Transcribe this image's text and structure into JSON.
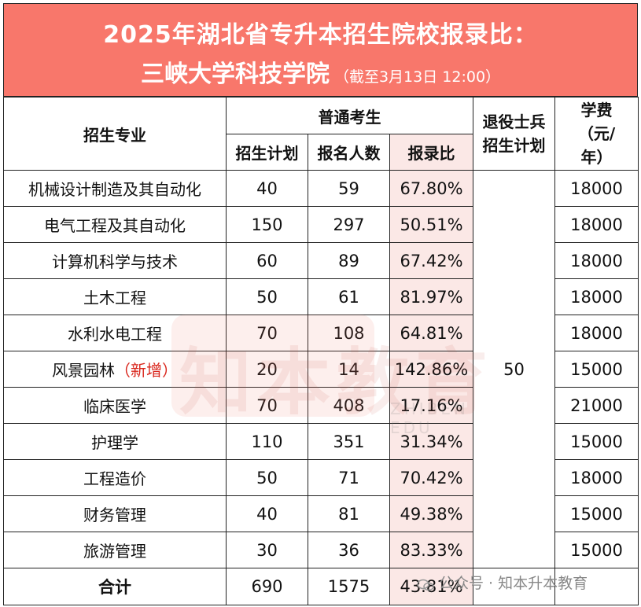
{
  "title": {
    "line1": "2025年湖北省专升本招生院校报录比：",
    "line2_main": "三峡大学科技学院",
    "line2_sub": "（截至3月13日 12:00）"
  },
  "headers": {
    "major": "招生专业",
    "regular_group": "普通考生",
    "plan": "招生计划",
    "applicants": "报名人数",
    "ratio": "报录比",
    "veteran": "退役士兵招生计划",
    "tuition": "学费（元/年）"
  },
  "rows": [
    {
      "major": "机械设计制造及其自动化",
      "tag": "",
      "plan": "40",
      "applicants": "59",
      "ratio": "67.80%",
      "tuition": "18000"
    },
    {
      "major": "电气工程及其自动化",
      "tag": "",
      "plan": "150",
      "applicants": "297",
      "ratio": "50.51%",
      "tuition": "18000"
    },
    {
      "major": "计算机科学与技术",
      "tag": "",
      "plan": "60",
      "applicants": "89",
      "ratio": "67.42%",
      "tuition": "18000"
    },
    {
      "major": "土木工程",
      "tag": "",
      "plan": "50",
      "applicants": "61",
      "ratio": "81.97%",
      "tuition": "18000"
    },
    {
      "major": "水利水电工程",
      "tag": "",
      "plan": "70",
      "applicants": "108",
      "ratio": "64.81%",
      "tuition": "18000"
    },
    {
      "major": "风景园林",
      "tag": "（新增）",
      "plan": "20",
      "applicants": "14",
      "ratio": "142.86%",
      "tuition": "15000"
    },
    {
      "major": "临床医学",
      "tag": "",
      "plan": "70",
      "applicants": "408",
      "ratio": "17.16%",
      "tuition": "21000"
    },
    {
      "major": "护理学",
      "tag": "",
      "plan": "110",
      "applicants": "351",
      "ratio": "31.34%",
      "tuition": "15000"
    },
    {
      "major": "工程造价",
      "tag": "",
      "plan": "50",
      "applicants": "71",
      "ratio": "70.42%",
      "tuition": "18000"
    },
    {
      "major": "财务管理",
      "tag": "",
      "plan": "40",
      "applicants": "81",
      "ratio": "49.38%",
      "tuition": "15000"
    },
    {
      "major": "旅游管理",
      "tag": "",
      "plan": "30",
      "applicants": "36",
      "ratio": "83.33%",
      "tuition": "15000"
    }
  ],
  "veteran_plan": "50",
  "total": {
    "label": "合计",
    "plan": "690",
    "applicants": "1575",
    "ratio": "43.81%"
  },
  "watermark": {
    "text": "知本教育",
    "sub": "ZHIBEN EDU"
  },
  "footer": {
    "text": "公众号 · 知本升本教育"
  },
  "colors": {
    "title_bg": "#f8776b",
    "ratio_bg": "#fbe8e6",
    "new_tag": "#d9261c"
  }
}
